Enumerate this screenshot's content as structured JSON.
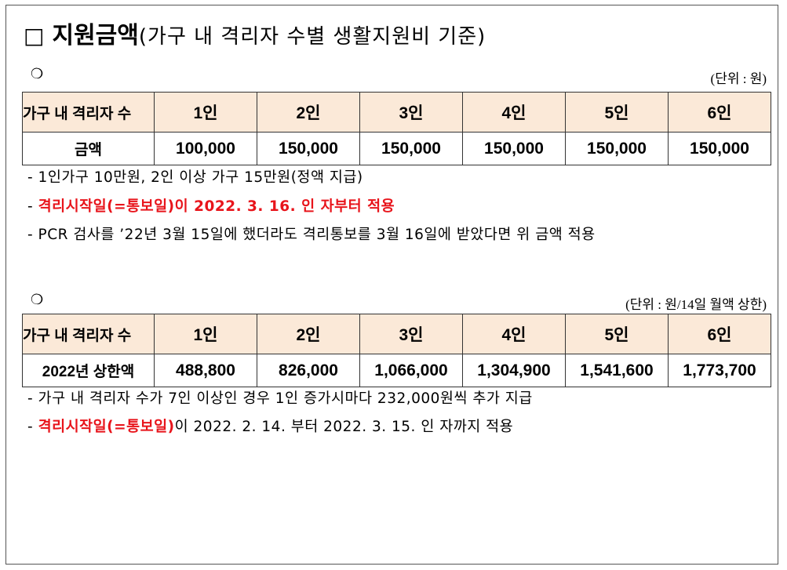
{
  "title": {
    "box": "□",
    "main": "지원금액",
    "sub": "(가구 내 격리자 수별 생활지원비 기준)"
  },
  "section1": {
    "bullet": "❍",
    "unit": "(단위 : 원)",
    "headers": [
      "가구 내 격리자 수",
      "1인",
      "2인",
      "3인",
      "4인",
      "5인",
      "6인"
    ],
    "row": [
      "금액",
      "100,000",
      "150,000",
      "150,000",
      "150,000",
      "150,000",
      "150,000"
    ],
    "notes": {
      "n1": "- 1인가구 10만원, 2인 이상 가구 15만원(정액 지급)",
      "n2_dash": "- ",
      "n2_red": "격리시작일(=통보일)이 2022. 3. 16. 인 자부터 적용",
      "n3": "- PCR 검사를 ’22년 3월 15일에 했더라도 격리통보를 3월 16일에 받았다면 위 금액 적용"
    }
  },
  "section2": {
    "bullet": "❍",
    "unit": "(단위 : 원/14일 월액 상한)",
    "headers": [
      "가구 내 격리자 수",
      "1인",
      "2인",
      "3인",
      "4인",
      "5인",
      "6인"
    ],
    "row": [
      "2022년 상한액",
      "488,800",
      "826,000",
      "1,066,000",
      "1,304,900",
      "1,541,600",
      "1,773,700"
    ],
    "notes": {
      "n1": "- 가구 내 격리자 수가 7인 이상인 경우 1인 증가시마다 232,000원씩 추가 지급",
      "n2_dash": "- ",
      "n2_red": "격리시작일(=통보일)",
      "n2_rest": "이 2022. 2. 14. 부터 2022. 3. 15. 인 자까지 적용"
    }
  }
}
